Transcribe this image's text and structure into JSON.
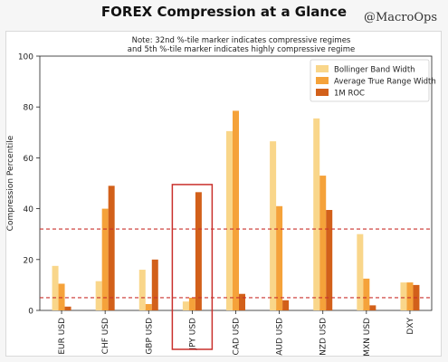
{
  "header": {
    "title": "FOREX Compression at a Glance",
    "brand": "@MacroOps"
  },
  "chart_data": {
    "type": "bar",
    "title": "",
    "note_lines": [
      "Note: 32nd %-tile marker indicates compressive regimes",
      "and 5th %-tile marker indicates highly compressive regime"
    ],
    "xlabel": "",
    "ylabel": "Compression Percentile",
    "ylim": [
      0,
      100
    ],
    "yticks": [
      0,
      20,
      40,
      60,
      80,
      100
    ],
    "categories": [
      "EUR USD",
      "CHF USD",
      "GBP USD",
      "JPY USD",
      "CAD USD",
      "AUD USD",
      "NZD USD",
      "MXN USD",
      "DXY"
    ],
    "series": [
      {
        "name": "Bollinger Band Width",
        "color": "#f9d68a",
        "values": [
          17.5,
          11.5,
          16,
          3.5,
          70.5,
          66.5,
          75.5,
          30,
          11
        ]
      },
      {
        "name": "Average True Range Width",
        "color": "#f5a23a",
        "values": [
          10.5,
          40,
          2.5,
          5,
          78.5,
          41,
          53,
          12.5,
          11
        ]
      },
      {
        "name": "1M ROC",
        "color": "#d2601a",
        "values": [
          1.5,
          49,
          20,
          46.5,
          6.5,
          4,
          39.5,
          2,
          10
        ]
      }
    ],
    "reference_lines": [
      {
        "value": 32,
        "color": "#c9302c",
        "style": "dashed"
      },
      {
        "value": 5,
        "color": "#c9302c",
        "style": "dashed"
      }
    ],
    "highlight_category": "JPY USD",
    "highlight_color": "#c9302c",
    "legend_position": "top-right",
    "grid": false
  }
}
